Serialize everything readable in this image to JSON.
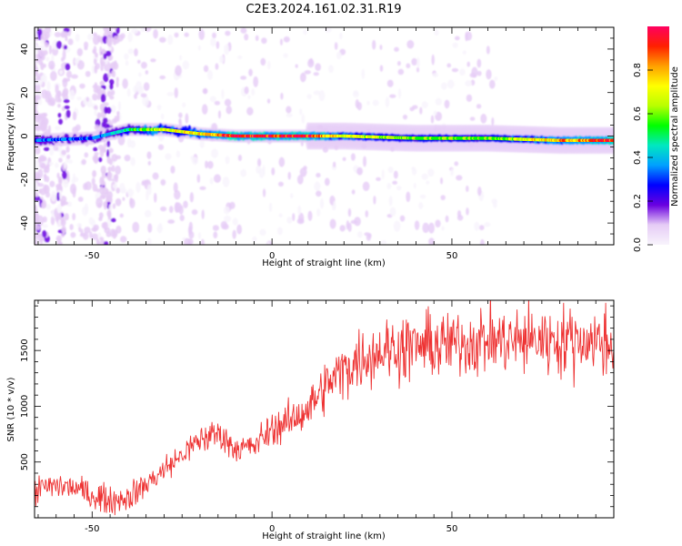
{
  "title": "C2E3.2024.161.02.31.R19",
  "chart_data": [
    {
      "type": "heatmap",
      "xlabel": "Height of straight line (km)",
      "ylabel": "Frequency (Hz)",
      "xlim": [
        -66,
        95
      ],
      "ylim": [
        -50,
        50
      ],
      "xticks": [
        -50,
        0,
        50
      ],
      "yticks": [
        -40,
        -20,
        0,
        20,
        40
      ],
      "grid": false,
      "ridge": {
        "description_points_x": [
          -66,
          -50,
          -40,
          -30,
          -20,
          -10,
          0,
          10,
          20,
          40,
          60,
          80,
          95
        ],
        "frequency_hz": [
          -2,
          -1,
          3,
          3,
          1,
          0,
          0,
          0,
          0,
          -1,
          -1,
          -2,
          -2
        ],
        "amplitude": [
          0.35,
          0.3,
          0.5,
          0.7,
          0.75,
          0.95,
          0.95,
          0.95,
          0.7,
          0.6,
          0.6,
          0.8,
          0.95
        ]
      },
      "colorbar": {
        "label": "Normalized spectral amplitude",
        "range": [
          0,
          1
        ],
        "ticks": [
          0.0,
          0.2,
          0.4,
          0.6,
          0.8
        ],
        "colors": [
          "#f8f4fc",
          "#e6ccf6",
          "#6a00e0",
          "#0000ff",
          "#00a0ff",
          "#00e8c0",
          "#00ff00",
          "#b8ff00",
          "#ffff00",
          "#ffa000",
          "#ff2000",
          "#ff0060"
        ]
      }
    },
    {
      "type": "line",
      "xlabel": "Height of straight line (km)",
      "ylabel": "SNR (10 * v/v)",
      "xlim": [
        -66,
        95
      ],
      "ylim": [
        0,
        1950
      ],
      "xticks": [
        -50,
        0,
        50
      ],
      "yticks": [
        500,
        1000,
        1500
      ],
      "grid": false,
      "color": "#ee3333",
      "series": [
        {
          "x": [
            -66,
            -60,
            -55,
            -50,
            -45,
            -40,
            -35,
            -30,
            -25,
            -20,
            -15,
            -10,
            -5,
            0,
            5,
            10,
            15,
            20,
            25,
            30,
            35,
            40,
            45,
            50,
            55,
            60,
            65,
            70,
            75,
            80,
            85,
            90,
            95
          ],
          "values": [
            250,
            290,
            270,
            200,
            160,
            180,
            300,
            430,
            560,
            700,
            760,
            620,
            640,
            800,
            860,
            980,
            1180,
            1330,
            1430,
            1500,
            1520,
            1540,
            1540,
            1560,
            1580,
            1600,
            1580,
            1590,
            1600,
            1590,
            1600,
            1580,
            1560
          ]
        }
      ]
    }
  ]
}
